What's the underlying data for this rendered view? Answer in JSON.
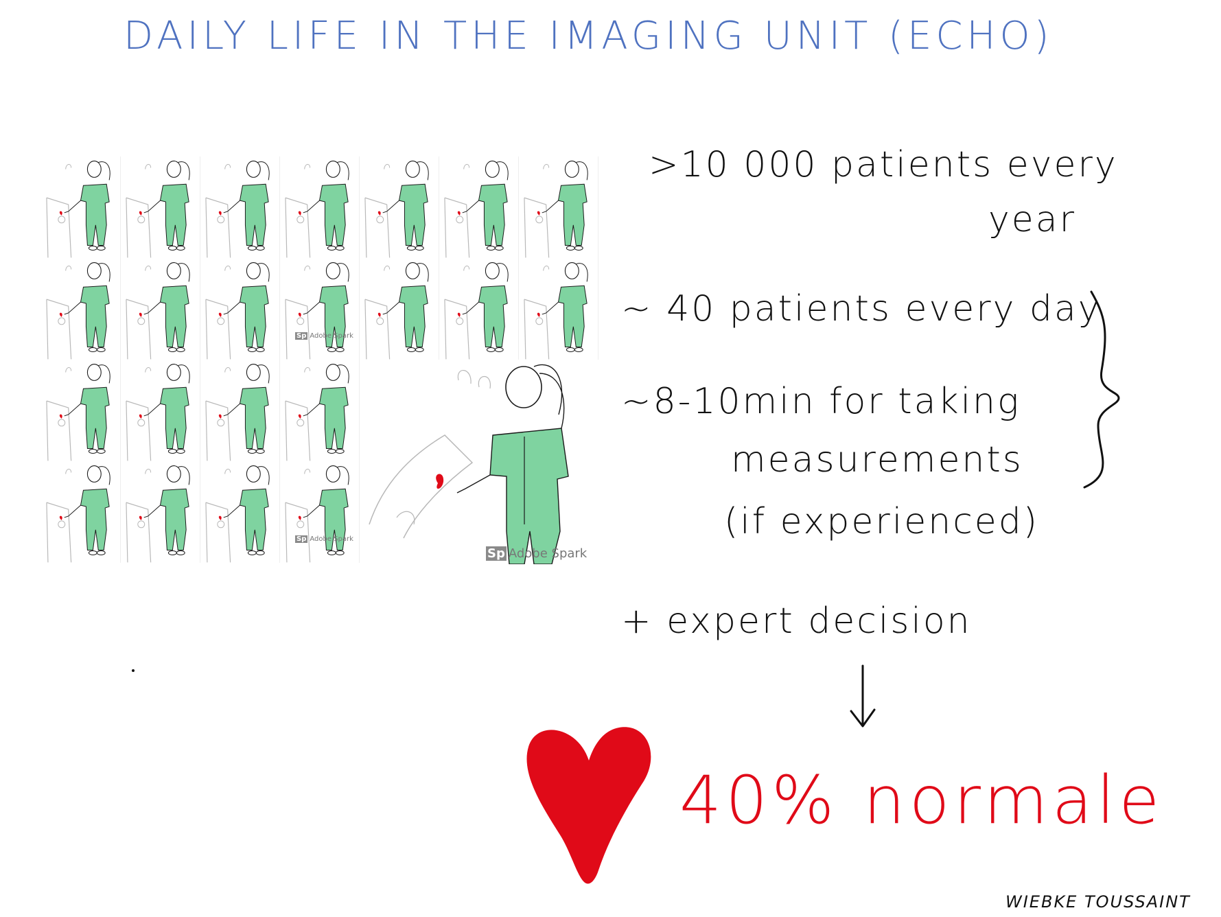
{
  "title": "DAILY LIFE IN THE IMAGING UNIT (ECHO)",
  "illustration": {
    "figure_icon": "sonographer-at-echo-machine",
    "watermark_badge": "Sp",
    "watermark_text": "Adobe Spark",
    "colors": {
      "scrubs": "#7fd3a0",
      "heart": "#e00a18",
      "outline": "#1a1a1a",
      "machine": "#b8b8b8"
    }
  },
  "notes": {
    "line1": ">10 000 patients every",
    "line1b": "year",
    "line2": "~ 40 patients every day",
    "line3": "~8-10min for taking",
    "line4": "measurements",
    "line5": "(if experienced)",
    "line6": "+ expert decision"
  },
  "result": {
    "icon": "heart-icon",
    "text": "40% normale",
    "color": "#e00a18"
  },
  "signature": "WIEBKE TOUSSAINT",
  "title_color": "#4f72c0"
}
